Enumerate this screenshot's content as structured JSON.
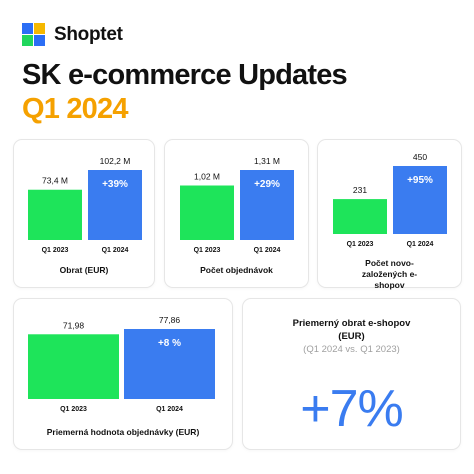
{
  "brand": {
    "name": "Shoptet",
    "icon": "shoptet-logo-icon"
  },
  "header": {
    "title": "SK e-commerce Updates",
    "subtitle": "Q1 2024"
  },
  "colors": {
    "green": "#1ee45a",
    "blue": "#3a7cf0",
    "yellow": "#f5a100",
    "logo_blue": "#2b6ef5",
    "logo_green": "#20d65c"
  },
  "chart_data": [
    {
      "type": "bar",
      "categories": [
        "Q1 2023",
        "Q1 2024"
      ],
      "values": [
        73.4,
        102.2
      ],
      "value_labels": [
        "73,4 M",
        "102,2 M"
      ],
      "change_label": "+39%",
      "xlabel": "Obrat  (EUR)"
    },
    {
      "type": "bar",
      "categories": [
        "Q1 2023",
        "Q1 2024"
      ],
      "values": [
        1.02,
        1.31
      ],
      "value_labels": [
        "1,02 M",
        "1,31 M"
      ],
      "change_label": "+29%",
      "xlabel": "Počet objednávok"
    },
    {
      "type": "bar",
      "categories": [
        "Q1 2023",
        "Q1 2024"
      ],
      "values": [
        231,
        450
      ],
      "value_labels": [
        "231",
        "450"
      ],
      "change_label": "+95%",
      "xlabel": "Počet novo-založených e-shopov"
    },
    {
      "type": "bar",
      "categories": [
        "Q1 2023",
        "Q1 2024"
      ],
      "values": [
        71.98,
        77.86
      ],
      "value_labels": [
        "71,98",
        "77,86"
      ],
      "change_label": "+8 %",
      "xlabel": "Priemerná hodnota objednávky (EUR)"
    }
  ],
  "summary": {
    "title": "Priemerný obrat e-shopov (EUR)",
    "period": "(Q1 2024 vs. Q1 2023)",
    "value": "+7%"
  }
}
